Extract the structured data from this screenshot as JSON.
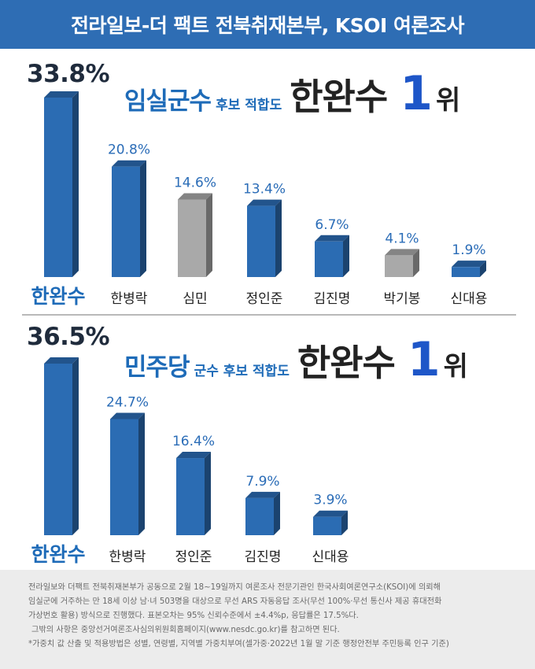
{
  "header": {
    "title": "전라일보-더 팩트 전북취재본부, KSOI 여론조사"
  },
  "chart_data": [
    {
      "type": "bar",
      "headline": {
        "highlight": "임실군수",
        "small": "후보 적합도",
        "leader": "한완수",
        "rank": "1",
        "rank_suffix": "위"
      },
      "top_value_label": "33.8%",
      "categories": [
        "한완수",
        "한병락",
        "심민",
        "정인준",
        "김진명",
        "박기봉",
        "신대용"
      ],
      "values": [
        33.8,
        20.8,
        14.6,
        13.4,
        6.7,
        4.1,
        1.9
      ],
      "value_labels": [
        "33.8%",
        "20.8%",
        "14.6%",
        "13.4%",
        "6.7%",
        "4.1%",
        "1.9%"
      ],
      "bar_colors": [
        "#2b6cb3",
        "#2b6cb3",
        "#a9a9a9",
        "#2b6cb3",
        "#2b6cb3",
        "#a9a9a9",
        "#2b6cb3"
      ]
    },
    {
      "type": "bar",
      "headline": {
        "highlight": "민주당",
        "small": "군수 후보 적합도",
        "leader": "한완수",
        "rank": "1",
        "rank_suffix": "위"
      },
      "top_value_label": "36.5%",
      "categories": [
        "한완수",
        "한병락",
        "정인준",
        "김진명",
        "신대용"
      ],
      "values": [
        36.5,
        24.7,
        16.4,
        7.9,
        3.9
      ],
      "value_labels": [
        "36.5%",
        "24.7%",
        "16.4%",
        "7.9%",
        "3.9%"
      ],
      "bar_colors": [
        "#2b6cb3",
        "#2b6cb3",
        "#2b6cb3",
        "#2b6cb3",
        "#2b6cb3"
      ]
    }
  ],
  "footer": {
    "lines": [
      "전라일보와 더팩트 전북취재본부가 공동으로 2월 18~19일까지 여론조사 전문기관인 한국사회여론연구소(KSOI)에 의뢰해",
      "임실군에 거주하는 만 18세 이상 남·녀 503명을 대상으로 무선 ARS 자동응답 조사(무선 100%·무선 통신사 제공 휴대전화",
      "가상번호 활용) 방식으로 진행했다. 표본오차는 95% 신뢰수준에서 ±4.4%p, 응답률은 17.5%다.",
      "그밖의 사항은 중앙선거여론조사심의위원회홈페이지(www.nesdc.go.kr)를 참고하면 된다.",
      "*가중치 값 산출 및 적용방법은 성별, 연령별, 지역별 가중치부여(셀가중·2022년 1월 말 기준 행정안전부 주민등록 인구 기준)"
    ]
  }
}
